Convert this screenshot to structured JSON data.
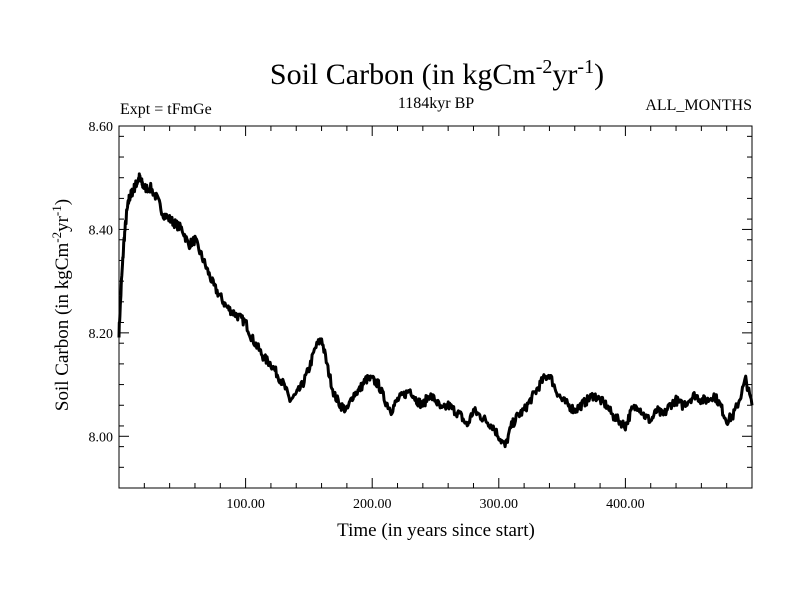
{
  "chart_data": {
    "type": "line",
    "title_main": "Soil Carbon (in kgCm",
    "title_sup1": "-2",
    "title_mid": "yr",
    "title_sup2": "-1",
    "title_end": ")",
    "subtitle_left": "Expt = tFmGe",
    "subtitle_center": "1184kyr BP",
    "subtitle_right": "ALL_MONTHS",
    "xlabel": "Time (in years since start)",
    "ylabel_main": "Soil Carbon (in kgCm",
    "ylabel_sup1": "-2",
    "ylabel_mid": "yr",
    "ylabel_sup2": "-1",
    "ylabel_end": ")",
    "xlim": [
      0,
      500
    ],
    "ylim": [
      7.9,
      8.6
    ],
    "xticks": [
      100,
      200,
      300,
      400
    ],
    "xtick_labels": [
      "100.00",
      "200.00",
      "300.00",
      "400.00"
    ],
    "yticks": [
      8.0,
      8.2,
      8.4,
      8.6
    ],
    "ytick_labels": [
      "8.00",
      "8.20",
      "8.40",
      "8.60"
    ],
    "grid": false,
    "series": [
      {
        "x": [
          0,
          2,
          4,
          6,
          8,
          10,
          12,
          14,
          16,
          18,
          20,
          25,
          30,
          35,
          40,
          45,
          50,
          55,
          60,
          65,
          70,
          75,
          80,
          85,
          90,
          95,
          100,
          105,
          110,
          115,
          120,
          125,
          130,
          135,
          140,
          145,
          150,
          155,
          160,
          165,
          170,
          175,
          180,
          185,
          190,
          195,
          200,
          205,
          210,
          215,
          220,
          225,
          230,
          235,
          240,
          245,
          250,
          255,
          260,
          265,
          270,
          275,
          280,
          285,
          290,
          295,
          300,
          305,
          310,
          315,
          320,
          325,
          330,
          335,
          340,
          345,
          350,
          355,
          360,
          365,
          370,
          375,
          380,
          385,
          390,
          395,
          400,
          405,
          410,
          415,
          420,
          425,
          430,
          435,
          440,
          445,
          450,
          455,
          460,
          465,
          470,
          475,
          480,
          485,
          490,
          495,
          500
        ],
        "y": [
          8.2,
          8.3,
          8.38,
          8.43,
          8.46,
          8.47,
          8.48,
          8.49,
          8.5,
          8.49,
          8.48,
          8.48,
          8.46,
          8.43,
          8.42,
          8.41,
          8.4,
          8.37,
          8.38,
          8.35,
          8.32,
          8.29,
          8.27,
          8.25,
          8.24,
          8.23,
          8.22,
          8.19,
          8.17,
          8.15,
          8.14,
          8.12,
          8.1,
          8.07,
          8.08,
          8.1,
          8.13,
          8.17,
          8.19,
          8.13,
          8.08,
          8.06,
          8.05,
          8.08,
          8.09,
          8.11,
          8.11,
          8.1,
          8.07,
          8.05,
          8.07,
          8.08,
          8.09,
          8.07,
          8.06,
          8.08,
          8.07,
          8.05,
          8.06,
          8.05,
          8.04,
          8.02,
          8.05,
          8.04,
          8.03,
          8.02,
          8.0,
          7.98,
          8.02,
          8.04,
          8.05,
          8.07,
          8.09,
          8.11,
          8.12,
          8.09,
          8.07,
          8.06,
          8.05,
          8.06,
          8.07,
          8.08,
          8.07,
          8.06,
          8.04,
          8.03,
          8.02,
          8.05,
          8.06,
          8.04,
          8.03,
          8.05,
          8.04,
          8.06,
          8.07,
          8.06,
          8.07,
          8.08,
          8.07,
          8.07,
          8.08,
          8.06,
          8.03,
          8.04,
          8.07,
          8.11,
          8.06
        ]
      }
    ]
  }
}
